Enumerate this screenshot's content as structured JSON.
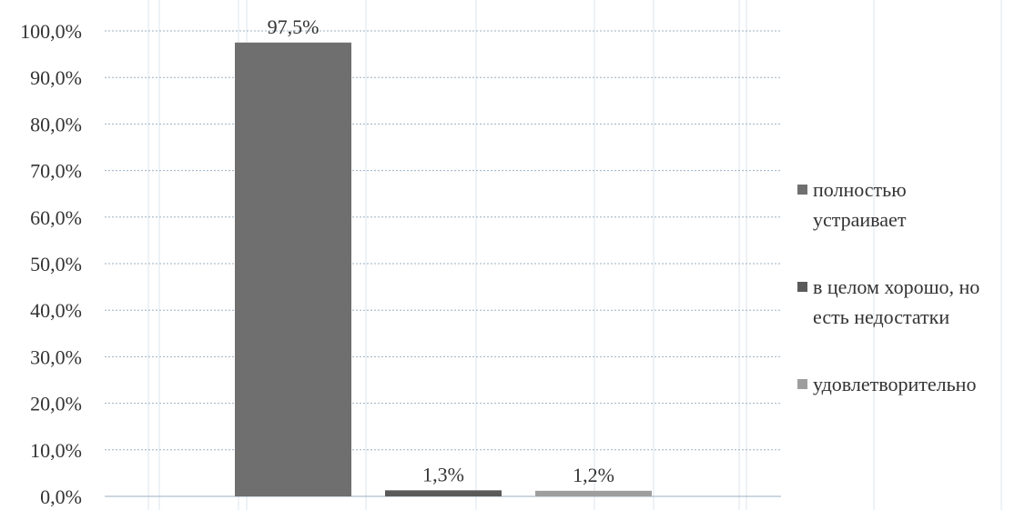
{
  "chart_data": {
    "type": "bar",
    "categories": [
      "полностью устраивает",
      "в целом хорошо, но есть недостатки",
      "удовлетворительно"
    ],
    "values": [
      97.5,
      1.3,
      1.2
    ],
    "data_labels": [
      "97,5%",
      "1,3%",
      "1,2%"
    ],
    "ylim": [
      0,
      100
    ],
    "yticks": [
      0,
      10,
      20,
      30,
      40,
      50,
      60,
      70,
      80,
      90,
      100
    ],
    "ytick_labels": [
      "0,0%",
      "10,0%",
      "20,0%",
      "30,0%",
      "40,0%",
      "50,0%",
      "60,0%",
      "70,0%",
      "80,0%",
      "90,0%",
      "100,0%"
    ],
    "grid": true,
    "legend_position": "right",
    "legend": [
      {
        "lines": [
          "полностью",
          "устраивает"
        ],
        "color": "#6f6f6f"
      },
      {
        "lines": [
          "в целом хорошо, но",
          "есть недостатки"
        ],
        "color": "#5a5a5a"
      },
      {
        "lines": [
          "удовлетворительно"
        ],
        "color": "#9e9e9e"
      }
    ],
    "colors": [
      "#6f6f6f",
      "#5a5a5a",
      "#9e9e9e"
    ]
  }
}
